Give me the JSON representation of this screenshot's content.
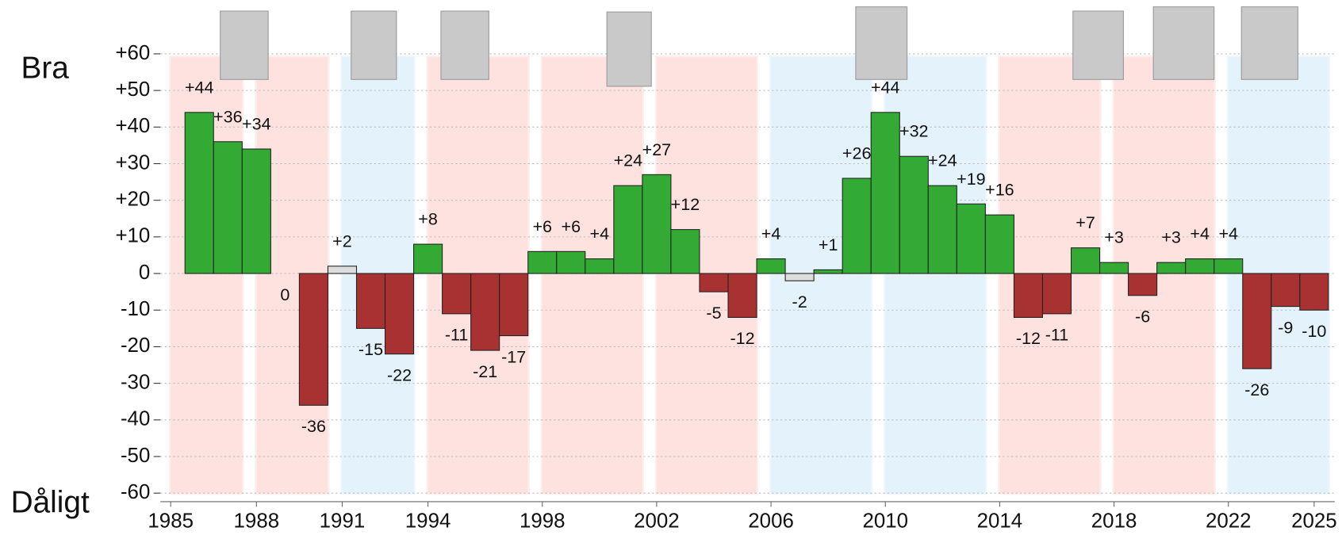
{
  "chart_data": {
    "type": "bar",
    "y_label_top": "Bra",
    "y_label_bottom": "Dåligt",
    "x": [
      1986,
      1987,
      1988,
      1989,
      1990,
      1991,
      1992,
      1993,
      1994,
      1995,
      1996,
      1997,
      1998,
      1999,
      2000,
      2001,
      2002,
      2003,
      2004,
      2005,
      2006,
      2007,
      2008,
      2009,
      2010,
      2011,
      2012,
      2013,
      2014,
      2015,
      2016,
      2017,
      2018,
      2019,
      2020,
      2021,
      2022,
      2023,
      2024,
      2025
    ],
    "series": [
      {
        "values": [
          44,
          36,
          34,
          0,
          -36,
          2,
          -15,
          -22,
          8,
          -11,
          -21,
          -17,
          6,
          6,
          4,
          24,
          27,
          12,
          -5,
          -12,
          4,
          -2,
          1,
          26,
          44,
          32,
          24,
          19,
          16,
          -12,
          -11,
          7,
          3,
          -6,
          3,
          4,
          4,
          -26,
          -9,
          -10
        ],
        "value_labels": [
          "+44",
          "+36",
          "+34",
          "0",
          "-36",
          "+2",
          "-15",
          "-22",
          "+8",
          "-11",
          "-21",
          "-17",
          "+6",
          "+6",
          "+4",
          "+24",
          "+27",
          "+12",
          "-5",
          "-12",
          "+4",
          "-2",
          "+1",
          "+26",
          "+44",
          "+32",
          "+24",
          "+19",
          "+16",
          "-12",
          "-11",
          "+7",
          "+3",
          "-6",
          "+3",
          "+4",
          "+4",
          "-26",
          "-9",
          "-10"
        ],
        "colors": [
          "#33aa33",
          "#33aa33",
          "#33aa33",
          "#33aa33",
          "#a83232",
          "#dddddd",
          "#a83232",
          "#a83232",
          "#33aa33",
          "#a83232",
          "#a83232",
          "#a83232",
          "#33aa33",
          "#33aa33",
          "#33aa33",
          "#33aa33",
          "#33aa33",
          "#33aa33",
          "#a83232",
          "#a83232",
          "#33aa33",
          "#dddddd",
          "#33aa33",
          "#33aa33",
          "#33aa33",
          "#33aa33",
          "#33aa33",
          "#33aa33",
          "#33aa33",
          "#a83232",
          "#a83232",
          "#33aa33",
          "#33aa33",
          "#a83232",
          "#33aa33",
          "#33aa33",
          "#33aa33",
          "#a83232",
          "#a83232",
          "#a83232"
        ]
      }
    ],
    "periods": [
      {
        "start": 1985,
        "end": 1987.5,
        "color": "#fde2df"
      },
      {
        "start": 1988,
        "end": 1990.5,
        "color": "#fde2df"
      },
      {
        "start": 1991,
        "end": 1993.5,
        "color": "#e4f2fc"
      },
      {
        "start": 1994,
        "end": 1997.5,
        "color": "#fde2df"
      },
      {
        "start": 1998,
        "end": 2001.5,
        "color": "#fde2df"
      },
      {
        "start": 2002,
        "end": 2005.5,
        "color": "#fde2df"
      },
      {
        "start": 2006,
        "end": 2009.5,
        "color": "#e4f2fc"
      },
      {
        "start": 2010,
        "end": 2013.5,
        "color": "#e4f2fc"
      },
      {
        "start": 2014,
        "end": 2017.5,
        "color": "#fde2df"
      },
      {
        "start": 2018,
        "end": 2021.5,
        "color": "#fde2df"
      },
      {
        "start": 2022,
        "end": 2025.5,
        "color": "#e4f2fc"
      }
    ],
    "xlim": [
      1985,
      2025
    ],
    "xticks": [
      1985,
      1988,
      1991,
      1994,
      1998,
      2002,
      2006,
      2010,
      2014,
      2018,
      2022,
      2025
    ],
    "ylim": [
      -60,
      60
    ],
    "yticks": [
      {
        "value": 60,
        "label": "+60"
      },
      {
        "value": 50,
        "label": "+50"
      },
      {
        "value": 40,
        "label": "+40"
      },
      {
        "value": 30,
        "label": "+30"
      },
      {
        "value": 20,
        "label": "+20"
      },
      {
        "value": 10,
        "label": "+10"
      },
      0,
      -10,
      -20,
      -30,
      -40,
      -50,
      -60
    ],
    "grid": true
  }
}
